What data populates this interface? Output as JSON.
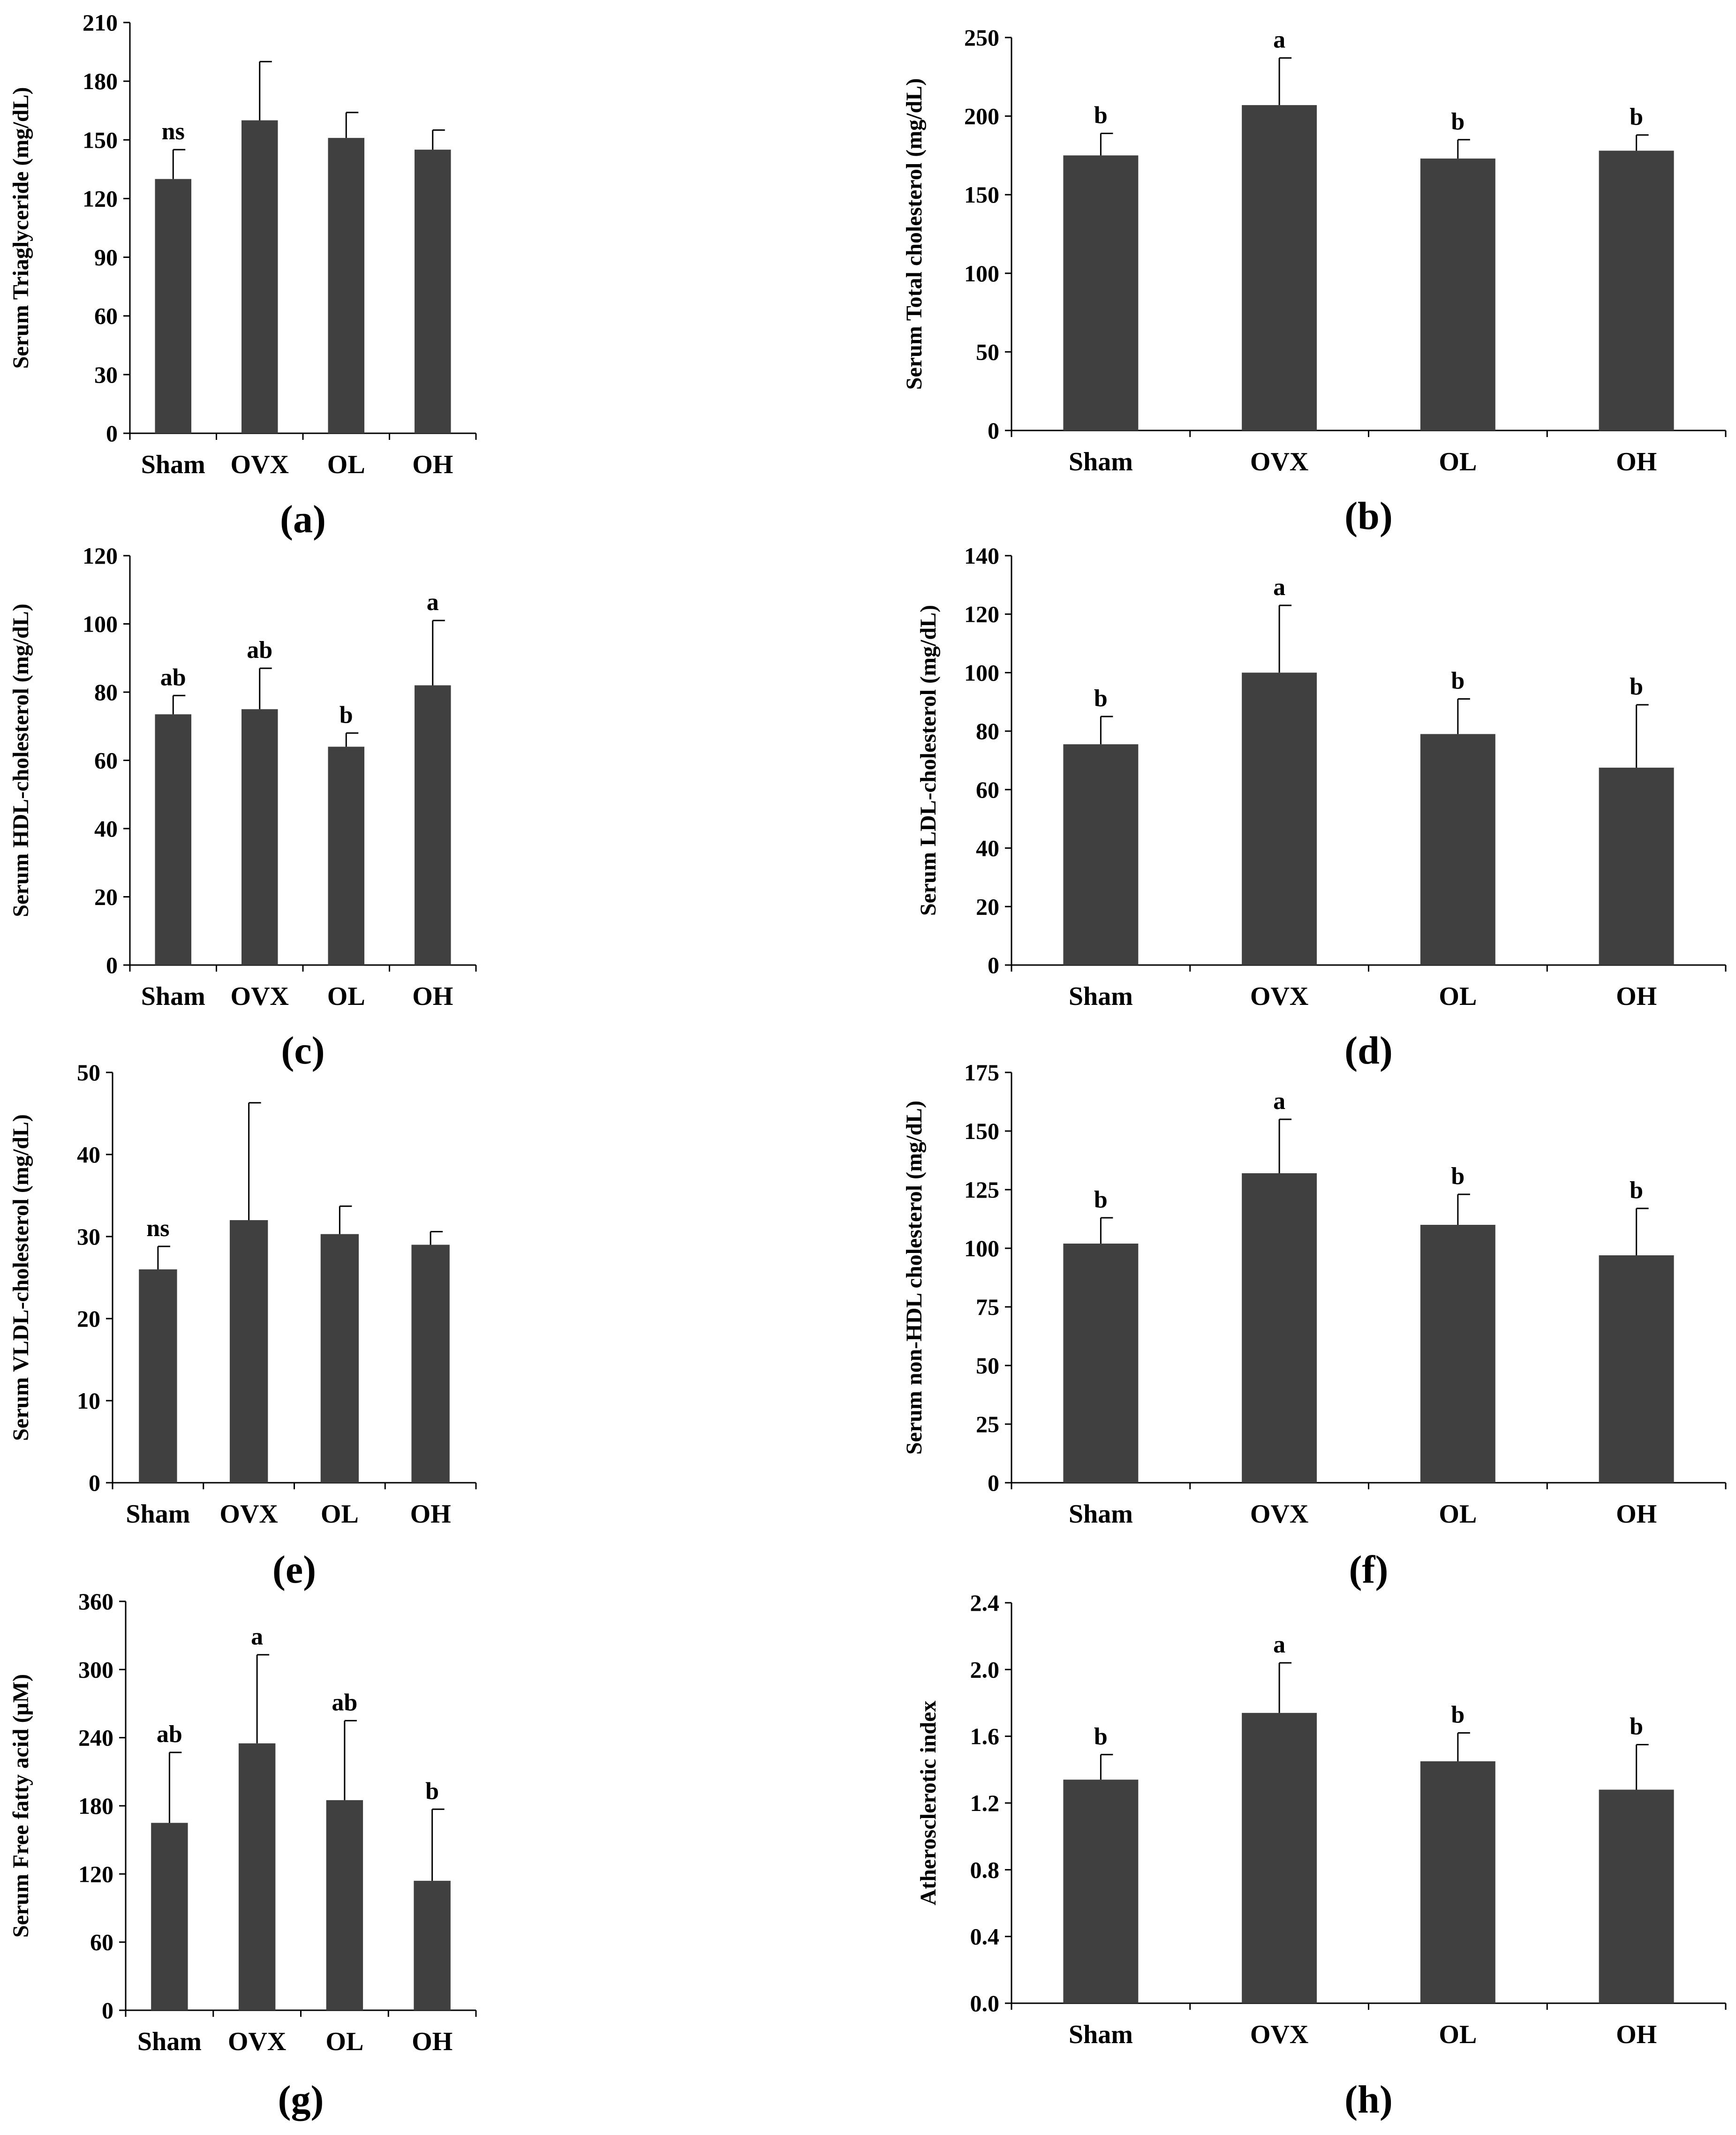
{
  "figure": {
    "bar_color": "#404040",
    "axis_color": "#000000"
  },
  "chart_data": [
    {
      "panel": "(a)",
      "type": "bar",
      "ylabel": "Serum Triaglyceride (mg/dL)",
      "categories": [
        "Sham",
        "OVX",
        "OL",
        "OH"
      ],
      "values": [
        130,
        160,
        151,
        145
      ],
      "errors": [
        15,
        30,
        13,
        10
      ],
      "significance": [
        "ns",
        "",
        "",
        ""
      ],
      "ylim": [
        0,
        210
      ],
      "yticks": [
        0,
        30,
        60,
        90,
        120,
        150,
        180,
        210
      ],
      "yticklabels": [
        "0",
        "30",
        "60",
        "90",
        "120",
        "150",
        "180",
        "210"
      ]
    },
    {
      "panel": "(b)",
      "type": "bar",
      "ylabel": "Serum Total cholesterol (mg/dL)",
      "categories": [
        "Sham",
        "OVX",
        "OL",
        "OH"
      ],
      "values": [
        175,
        207,
        173,
        178
      ],
      "errors": [
        14,
        30,
        12,
        10
      ],
      "significance": [
        "b",
        "a",
        "b",
        "b"
      ],
      "ylim": [
        0,
        250
      ],
      "yticks": [
        0,
        50,
        100,
        150,
        200,
        250
      ],
      "yticklabels": [
        "0",
        "50",
        "100",
        "150",
        "200",
        "250"
      ]
    },
    {
      "panel": "(c)",
      "type": "bar",
      "ylabel": "Serum HDL-cholesterol (mg/dL)",
      "categories": [
        "Sham",
        "OVX",
        "OL",
        "OH"
      ],
      "values": [
        73.5,
        75,
        64,
        82
      ],
      "errors": [
        5.5,
        12,
        4,
        19
      ],
      "significance": [
        "ab",
        "ab",
        "b",
        "a"
      ],
      "ylim": [
        0,
        120
      ],
      "yticks": [
        0,
        20,
        40,
        60,
        80,
        100,
        120
      ],
      "yticklabels": [
        "0",
        "20",
        "40",
        "60",
        "80",
        "100",
        "120"
      ]
    },
    {
      "panel": "(d)",
      "type": "bar",
      "ylabel": "Serum LDL-cholesterol (mg/dL)",
      "categories": [
        "Sham",
        "OVX",
        "OL",
        "OH"
      ],
      "values": [
        75.5,
        100,
        79,
        67.5
      ],
      "errors": [
        9.5,
        23,
        12,
        21.5
      ],
      "significance": [
        "b",
        "a",
        "b",
        "b"
      ],
      "ylim": [
        0,
        140
      ],
      "yticks": [
        0,
        20,
        40,
        60,
        80,
        100,
        120,
        140
      ],
      "yticklabels": [
        "0",
        "20",
        "40",
        "60",
        "80",
        "100",
        "120",
        "140"
      ]
    },
    {
      "panel": "(e)",
      "type": "bar",
      "ylabel": "Serum VLDL-cholesterol (mg/dL)",
      "categories": [
        "Sham",
        "OVX",
        "OL",
        "OH"
      ],
      "values": [
        26,
        32,
        30.3,
        29
      ],
      "errors": [
        2.8,
        14.3,
        3.4,
        1.6
      ],
      "significance": [
        "ns",
        "",
        "",
        ""
      ],
      "ylim": [
        0,
        50
      ],
      "yticks": [
        0,
        10,
        20,
        30,
        40,
        50
      ],
      "yticklabels": [
        "0",
        "10",
        "20",
        "30",
        "40",
        "50"
      ]
    },
    {
      "panel": "(f)",
      "type": "bar",
      "ylabel": "Serum non-HDL cholesterol (mg/dL)",
      "categories": [
        "Sham",
        "OVX",
        "OL",
        "OH"
      ],
      "values": [
        102,
        132,
        110,
        97
      ],
      "errors": [
        11,
        23,
        13,
        20
      ],
      "significance": [
        "b",
        "a",
        "b",
        "b"
      ],
      "ylim": [
        0,
        175
      ],
      "yticks": [
        0,
        25,
        50,
        75,
        100,
        125,
        150,
        175
      ],
      "yticklabels": [
        "0",
        "25",
        "50",
        "75",
        "100",
        "125",
        "150",
        "175"
      ]
    },
    {
      "panel": "(g)",
      "type": "bar",
      "ylabel": "Serum Free fatty acid (μM)",
      "categories": [
        "Sham",
        "OVX",
        "OL",
        "OH"
      ],
      "values": [
        165,
        235,
        185,
        114
      ],
      "errors": [
        62,
        78,
        70,
        63
      ],
      "significance": [
        "ab",
        "a",
        "ab",
        "b"
      ],
      "ylim": [
        0,
        360
      ],
      "yticks": [
        0,
        60,
        120,
        180,
        240,
        300,
        360
      ],
      "yticklabels": [
        "0",
        "60",
        "120",
        "180",
        "240",
        "300",
        "360"
      ]
    },
    {
      "panel": "(h)",
      "type": "bar",
      "ylabel": "Atherosclerotic index",
      "categories": [
        "Sham",
        "OVX",
        "OL",
        "OH"
      ],
      "values": [
        1.34,
        1.74,
        1.45,
        1.28
      ],
      "errors": [
        0.15,
        0.3,
        0.17,
        0.27
      ],
      "significance": [
        "b",
        "a",
        "b",
        "b"
      ],
      "ylim": [
        0,
        2.4
      ],
      "yticks": [
        0,
        0.4,
        0.8,
        1.2,
        1.6,
        2.0,
        2.4
      ],
      "yticklabels": [
        "0.0",
        "0.4",
        "0.8",
        "1.2",
        "1.6",
        "2.0",
        "2.4"
      ]
    }
  ]
}
